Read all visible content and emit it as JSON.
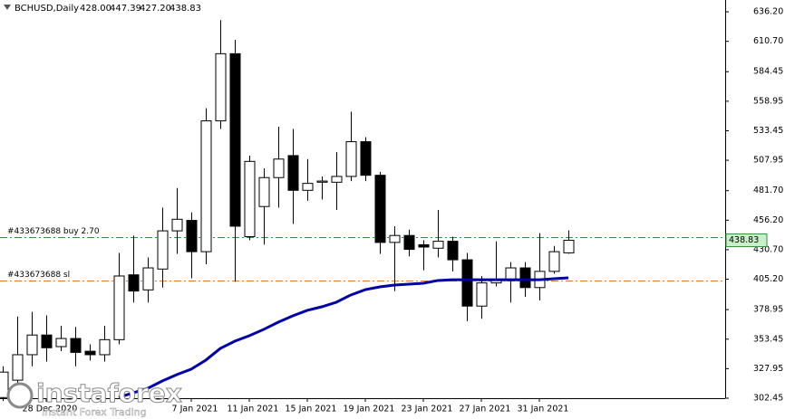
{
  "chart_data": {
    "type": "candlestick",
    "header": {
      "symbol": "BCHUSD,Daily",
      "ohlc": [
        {
          "value": 428,
          "label": "428.00"
        },
        447.39,
        {
          "value": 427.2,
          "label": "427.20"
        },
        438.83
      ]
    },
    "categories": [
      null,
      null,
      null,
      "28 Dec 2020",
      null,
      null,
      null,
      null,
      null,
      null,
      null,
      null,
      null,
      "7 Jan 2021",
      null,
      null,
      null,
      "11 Jan 2021",
      null,
      null,
      null,
      "15 Jan 2021",
      null,
      null,
      null,
      "19 Jan 2021",
      null,
      null,
      null,
      "23 Jan 2021",
      null,
      null,
      null,
      "27 Jan 2021",
      null,
      null,
      null,
      "31 Jan 2021",
      null,
      null
    ],
    "open": [
      303,
      318,
      340,
      357,
      347,
      354,
      343,
      340,
      353,
      409,
      396,
      414,
      447,
      456,
      429,
      542,
      600,
      442,
      468,
      493,
      512,
      482,
      489,
      489,
      494,
      524,
      495,
      437,
      443,
      435,
      432,
      438,
      422,
      382,
      402,
      404,
      415,
      398,
      412,
      428
    ],
    "high": [
      330,
      373,
      377,
      374,
      365,
      364,
      349,
      365,
      428,
      443,
      424,
      467,
      484,
      463,
      553,
      629,
      612,
      512,
      501,
      537,
      535,
      509,
      494,
      515,
      550,
      528,
      498,
      451,
      448,
      439,
      465,
      442,
      428,
      408,
      438,
      420,
      420,
      445,
      434,
      447.39
    ],
    "low": [
      300,
      302,
      330,
      334,
      343,
      330,
      335,
      334,
      349,
      385,
      385,
      398,
      427,
      406,
      418,
      535,
      403,
      439,
      435,
      467,
      453,
      473,
      474,
      465,
      490,
      490,
      427,
      395,
      425,
      413,
      424,
      412,
      369,
      371,
      399,
      385,
      390,
      387,
      410,
      427.2
    ],
    "close": [
      325,
      340,
      357,
      346,
      354,
      342,
      340,
      353,
      408,
      395,
      415,
      447,
      457,
      429,
      542,
      600,
      451,
      507,
      493,
      509,
      482,
      488,
      490,
      494,
      524,
      495,
      437,
      443,
      431,
      433,
      438,
      422,
      382,
      402,
      404,
      415,
      398,
      412,
      429,
      438.83
    ],
    "ma_values": [
      null,
      null,
      null,
      null,
      null,
      null,
      null,
      null,
      303.2,
      307.1,
      311.0,
      317.3,
      322.8,
      327.5,
      335.3,
      345.4,
      351.7,
      356.4,
      361.9,
      368.1,
      373.6,
      378.3,
      381.4,
      385.3,
      391.6,
      396.2,
      398.6,
      400.2,
      400.9,
      401.7,
      404.1,
      404.8,
      404.8,
      404.8,
      404.8,
      404.8,
      404.8,
      404.8,
      405.6,
      406.4
    ],
    "ma_color": "#0000a8",
    "up_color": "#ffffff",
    "down_color": "#000000",
    "last_price": {
      "value": 438.83,
      "label": "438.83"
    },
    "orders": [
      {
        "label": "#433673688 buy 2.70",
        "price": 441.6,
        "color": "#3c8c3c"
      },
      {
        "label": "#433673688 sl",
        "price": 404.1,
        "color": "#e07830"
      }
    ],
    "ylim": [
      302.45,
      646.4
    ],
    "yticks": [
      {
        "value": 636.2,
        "label": "636.20"
      },
      {
        "value": 610.7,
        "label": "610.70"
      },
      584.45,
      558.95,
      533.45,
      507.95,
      {
        "value": 481.7,
        "label": "481.70"
      },
      {
        "value": 456.2,
        "label": "456.20"
      },
      {
        "value": 430.7,
        "label": "430.70"
      },
      {
        "value": 405.2,
        "label": "405.20"
      },
      378.95,
      353.45,
      327.95,
      302.45
    ],
    "watermark": {
      "name": "instaforex",
      "tagline": "Instant Forex Trading"
    }
  }
}
